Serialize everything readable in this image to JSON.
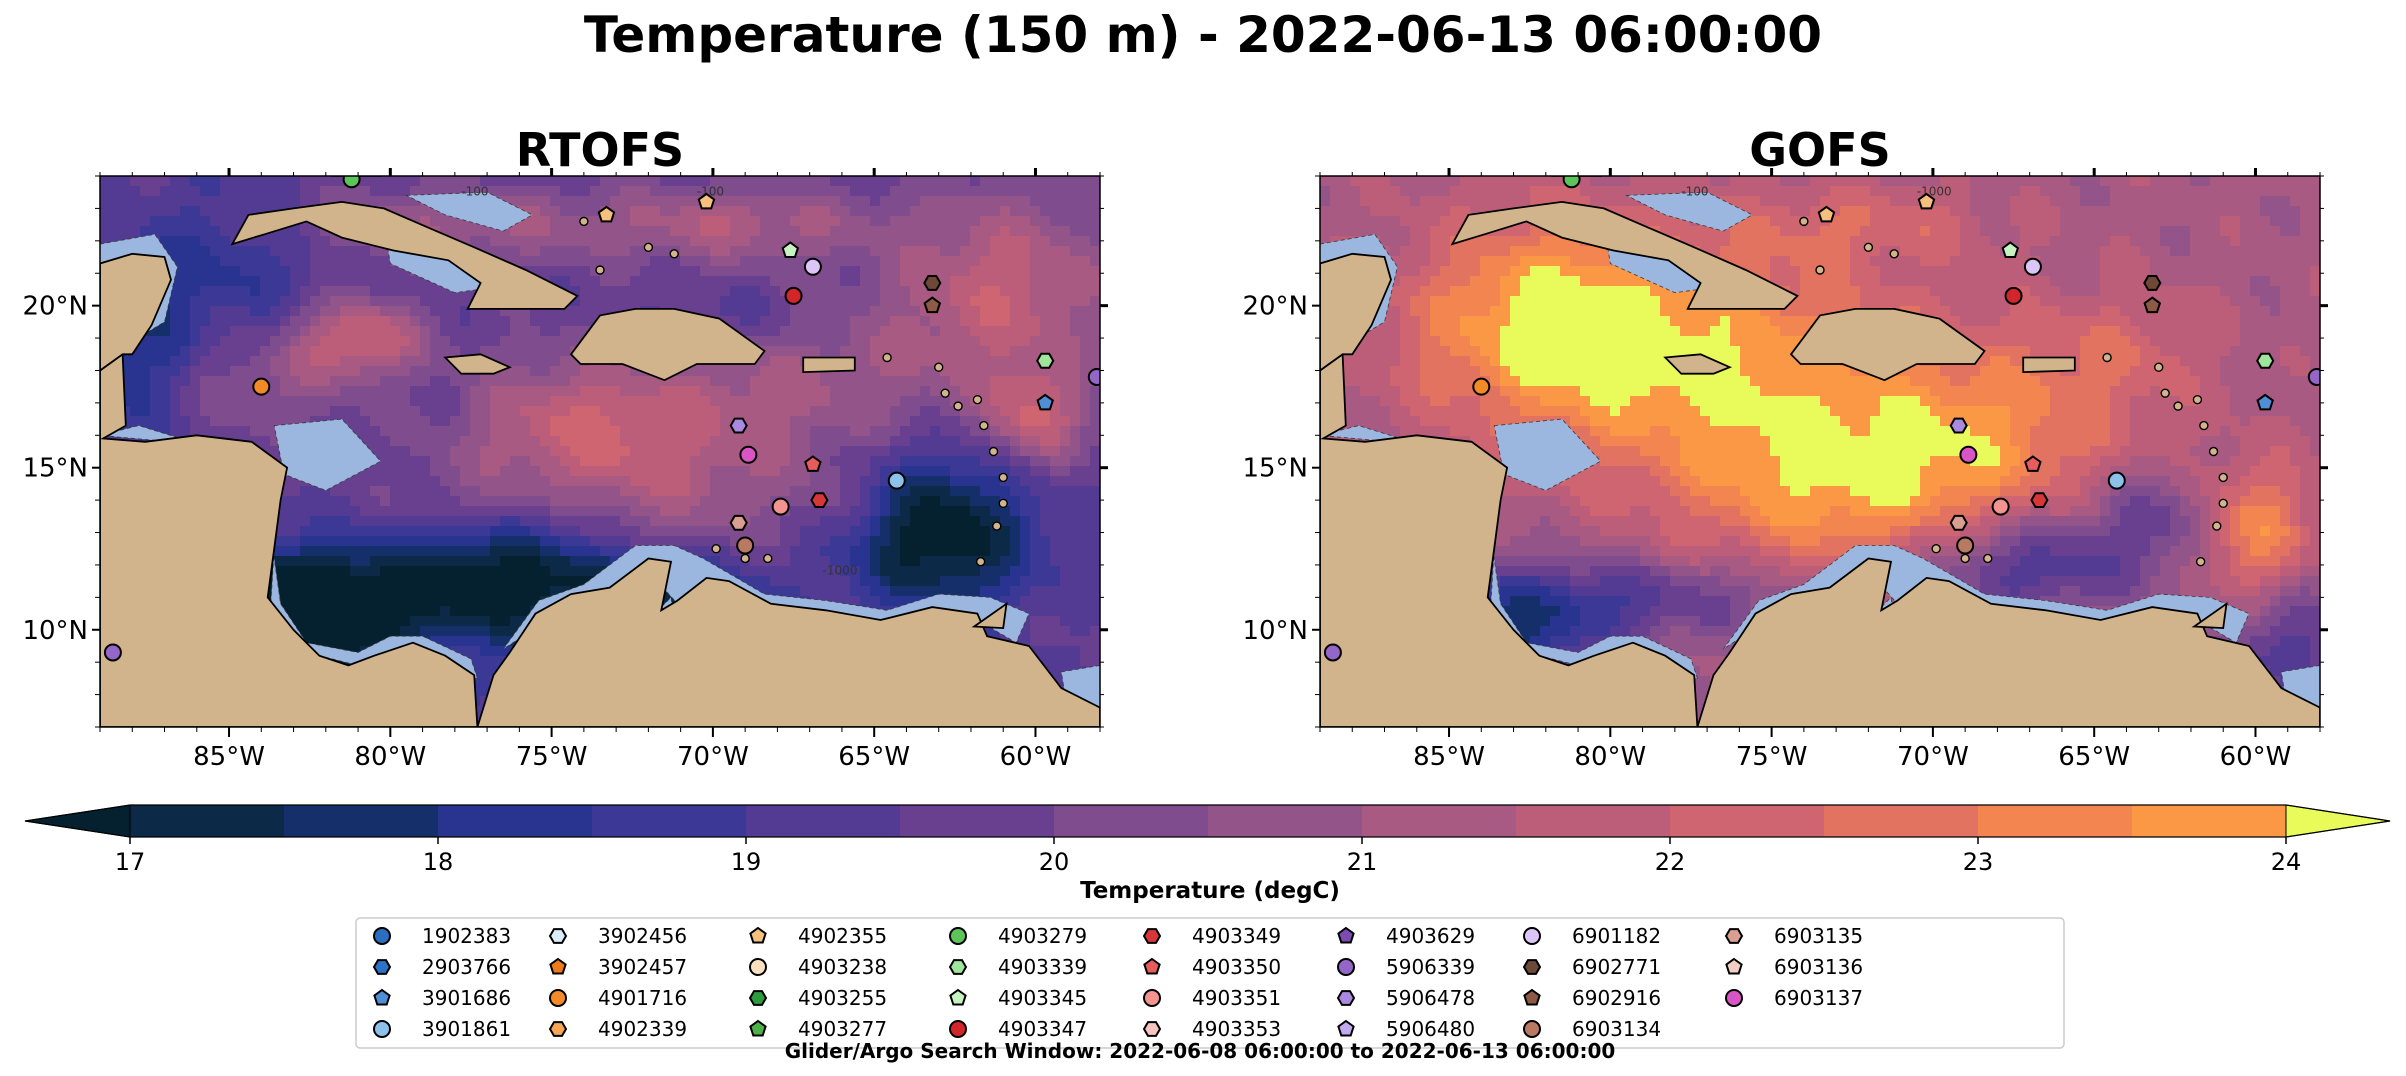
{
  "figure": {
    "title": "Temperature (150 m) - 2022-06-13 06:00:00",
    "footer": "Glider/Argo Search Window: 2022-06-08 06:00:00 to 2022-06-13 06:00:00"
  },
  "chart_data": [
    {
      "type": "heatmap",
      "title": "RTOFS",
      "region": "Caribbean Sea",
      "lon_range": [
        -89,
        -58
      ],
      "lat_range": [
        7,
        24
      ],
      "xticks": [
        "85°W",
        "80°W",
        "75°W",
        "70°W",
        "65°W",
        "60°W"
      ],
      "xtick_values": [
        -85,
        -80,
        -75,
        -70,
        -65,
        -60
      ],
      "yticks": [
        "20°N",
        "15°N",
        "10°N"
      ],
      "ytick_values": [
        20,
        15,
        10
      ],
      "contour_labels": [
        "-100",
        "-100",
        "-1000"
      ],
      "colors": {
        "land": "#d2b48c",
        "shallow": "#9bb7e0"
      }
    },
    {
      "type": "heatmap",
      "title": "GOFS",
      "region": "Caribbean Sea",
      "lon_range": [
        -89,
        -58
      ],
      "lat_range": [
        7,
        24
      ],
      "xticks": [
        "85°W",
        "80°W",
        "75°W",
        "70°W",
        "65°W",
        "60°W"
      ],
      "xtick_values": [
        -85,
        -80,
        -75,
        -70,
        -65,
        -60
      ],
      "yticks": [
        "20°N",
        "15°N",
        "10°N"
      ],
      "ytick_values": [
        20,
        15,
        10
      ],
      "contour_labels": [
        "-100",
        "-1000"
      ],
      "colors": {
        "land": "#d2b48c",
        "shallow": "#9bb7e0"
      }
    }
  ],
  "colorbar": {
    "label": "Temperature (degC)",
    "min": 17,
    "max": 24,
    "step": 0.5,
    "ticks": [
      "17",
      "18",
      "19",
      "20",
      "21",
      "22",
      "23",
      "24"
    ],
    "colors": [
      "#0c2a48",
      "#152f6a",
      "#283490",
      "#3c3896",
      "#533b94",
      "#693f8f",
      "#7f4c8d",
      "#93548a",
      "#a85a82",
      "#bc5e79",
      "#cf6570",
      "#e27361",
      "#f28550",
      "#fa9845",
      "#fcb045",
      "#fac94f",
      "#e8f556"
    ],
    "under_color": "#05202e",
    "over_color": "#e9fb5a"
  },
  "legend": {
    "entries": [
      {
        "id": "1902383",
        "color": "#2b6ebf",
        "marker": "circle"
      },
      {
        "id": "2903766",
        "color": "#2b73c9",
        "marker": "hexagon"
      },
      {
        "id": "3901686",
        "color": "#4f8fd6",
        "marker": "pentagon"
      },
      {
        "id": "3901861",
        "color": "#8dc1ea",
        "marker": "circle"
      },
      {
        "id": "3902456",
        "color": "#d9eef8",
        "marker": "hexagon"
      },
      {
        "id": "3902457",
        "color": "#ee7a19",
        "marker": "pentagon"
      },
      {
        "id": "4901716",
        "color": "#f38a28",
        "marker": "circle"
      },
      {
        "id": "4902339",
        "color": "#f7a657",
        "marker": "hexagon"
      },
      {
        "id": "4902355",
        "color": "#f8c07e",
        "marker": "pentagon"
      },
      {
        "id": "4903238",
        "color": "#fbe0c0",
        "marker": "circle"
      },
      {
        "id": "4903255",
        "color": "#2e9a3e",
        "marker": "hexagon"
      },
      {
        "id": "4903277",
        "color": "#4cb248",
        "marker": "pentagon"
      },
      {
        "id": "4903279",
        "color": "#5cc45a",
        "marker": "circle"
      },
      {
        "id": "4903339",
        "color": "#9fe59b",
        "marker": "hexagon"
      },
      {
        "id": "4903345",
        "color": "#c6f3c1",
        "marker": "pentagon"
      },
      {
        "id": "4903347",
        "color": "#d3262a",
        "marker": "circle"
      },
      {
        "id": "4903349",
        "color": "#d8373a",
        "marker": "hexagon"
      },
      {
        "id": "4903350",
        "color": "#e85c5d",
        "marker": "pentagon"
      },
      {
        "id": "4903351",
        "color": "#f39491",
        "marker": "circle"
      },
      {
        "id": "4903353",
        "color": "#f8c4c2",
        "marker": "hexagon"
      },
      {
        "id": "4903629",
        "color": "#7b4bb2",
        "marker": "pentagon"
      },
      {
        "id": "5906339",
        "color": "#9466c8",
        "marker": "circle"
      },
      {
        "id": "5906478",
        "color": "#a98ae0",
        "marker": "hexagon"
      },
      {
        "id": "5906480",
        "color": "#c3aaf0",
        "marker": "pentagon"
      },
      {
        "id": "6901182",
        "color": "#dcc6f7",
        "marker": "circle"
      },
      {
        "id": "6902771",
        "color": "#6e4937",
        "marker": "hexagon"
      },
      {
        "id": "6902916",
        "color": "#8c5a45",
        "marker": "pentagon"
      },
      {
        "id": "6903134",
        "color": "#b87a62",
        "marker": "circle"
      },
      {
        "id": "6903135",
        "color": "#d9a091",
        "marker": "hexagon"
      },
      {
        "id": "6903136",
        "color": "#f2cfc3",
        "marker": "pentagon"
      },
      {
        "id": "6903137",
        "color": "#d955c5",
        "marker": "circle"
      }
    ]
  },
  "stations": [
    {
      "id": "4903279",
      "lon": -81.2,
      "lat": 23.9,
      "marker": "circle",
      "color": "#5cc45a"
    },
    {
      "id": "4902355",
      "lon": -73.3,
      "lat": 22.8,
      "marker": "pentagon",
      "color": "#f8c07e"
    },
    {
      "id": "4902355",
      "lon": -70.2,
      "lat": 23.2,
      "marker": "pentagon",
      "color": "#f8c07e"
    },
    {
      "id": "4903345",
      "lon": -67.6,
      "lat": 21.7,
      "marker": "pentagon",
      "color": "#c6f3c1"
    },
    {
      "id": "6901182",
      "lon": -66.9,
      "lat": 21.2,
      "marker": "circle",
      "color": "#dcc6f7"
    },
    {
      "id": "4903347",
      "lon": -67.5,
      "lat": 20.3,
      "marker": "circle",
      "color": "#d3262a"
    },
    {
      "id": "6902771",
      "lon": -63.2,
      "lat": 20.7,
      "marker": "hexagon",
      "color": "#6e4937"
    },
    {
      "id": "6902916",
      "lon": -63.2,
      "lat": 20.0,
      "marker": "pentagon",
      "color": "#8c5a45"
    },
    {
      "id": "4903339",
      "lon": -59.7,
      "lat": 18.3,
      "marker": "hexagon",
      "color": "#9fe59b"
    },
    {
      "id": "5906339",
      "lon": -58.1,
      "lat": 17.8,
      "marker": "circle",
      "color": "#9466c8"
    },
    {
      "id": "3901686",
      "lon": -59.7,
      "lat": 17.0,
      "marker": "pentagon",
      "color": "#4f8fd6"
    },
    {
      "id": "4901716",
      "lon": -84.0,
      "lat": 17.5,
      "marker": "circle",
      "color": "#f38a28"
    },
    {
      "id": "5906478",
      "lon": -69.2,
      "lat": 16.3,
      "marker": "hexagon",
      "color": "#a98ae0"
    },
    {
      "id": "6903137",
      "lon": -68.9,
      "lat": 15.4,
      "marker": "circle",
      "color": "#d955c5"
    },
    {
      "id": "4903350",
      "lon": -66.9,
      "lat": 15.1,
      "marker": "pentagon",
      "color": "#e85c5d"
    },
    {
      "id": "3901861",
      "lon": -64.3,
      "lat": 14.6,
      "marker": "circle",
      "color": "#8dc1ea"
    },
    {
      "id": "4903351",
      "lon": -67.9,
      "lat": 13.8,
      "marker": "circle",
      "color": "#f39491"
    },
    {
      "id": "4903349",
      "lon": -66.7,
      "lat": 14.0,
      "marker": "hexagon",
      "color": "#d8373a"
    },
    {
      "id": "6903135",
      "lon": -69.2,
      "lat": 13.3,
      "marker": "hexagon",
      "color": "#d9a091"
    },
    {
      "id": "6903134",
      "lon": -69.0,
      "lat": 12.6,
      "marker": "circle",
      "color": "#b87a62"
    },
    {
      "id": "5906339",
      "lon": -88.6,
      "lat": 9.3,
      "marker": "circle",
      "color": "#9466c8"
    }
  ],
  "rtofs_field": {
    "base": 19.6,
    "blobs": [
      [
        -83,
        11,
        4,
        1.6,
        -3.4
      ],
      [
        -76,
        11.5,
        4,
        2,
        -3.1
      ],
      [
        -63,
        13,
        3,
        2.5,
        -3.2
      ],
      [
        -71,
        11,
        2.5,
        1.2,
        -2.2
      ],
      [
        -84,
        8.5,
        4,
        2,
        -3.5
      ],
      [
        -85,
        21.5,
        3,
        2.5,
        -1.2
      ],
      [
        -88,
        18.5,
        2,
        3,
        -1.5
      ],
      [
        -70,
        19.5,
        3,
        1.2,
        -0.7
      ],
      [
        -72,
        15,
        4,
        3,
        1.8
      ],
      [
        -75,
        16.5,
        3,
        2,
        1.4
      ],
      [
        -67,
        17.5,
        5,
        2.5,
        1.3
      ],
      [
        -61,
        20.5,
        3.5,
        3,
        2.2
      ],
      [
        -81,
        19,
        2,
        1.2,
        2.6
      ],
      [
        -84,
        17.5,
        3,
        1.5,
        1.0
      ],
      [
        -78,
        22.5,
        6,
        1.2,
        1.4
      ],
      [
        -69,
        22.5,
        4,
        1.2,
        1.6
      ],
      [
        -60,
        16.5,
        1.5,
        1.6,
        2.2
      ],
      [
        -66,
        14,
        2,
        1.2,
        0.8
      ],
      [
        -78,
        14,
        2.5,
        1.5,
        0.7
      ]
    ]
  },
  "gofs_field": {
    "base": 21.2,
    "blobs": [
      [
        -78,
        18.5,
        7,
        3.5,
        2.6
      ],
      [
        -73,
        14.5,
        5,
        3,
        2.4
      ],
      [
        -68,
        16,
        4,
        3,
        1.6
      ],
      [
        -82,
        20,
        4,
        3,
        1.8
      ],
      [
        -60,
        13,
        1.8,
        2.2,
        2.2
      ],
      [
        -84,
        10,
        4,
        2,
        -3.6
      ],
      [
        -80,
        11,
        2.5,
        1.2,
        -1.2
      ],
      [
        -67,
        12,
        3.5,
        1.6,
        -2.4
      ],
      [
        -63,
        13.5,
        2,
        1.5,
        -1.4
      ],
      [
        -76,
        11,
        3,
        1.2,
        -1.3
      ],
      [
        -59,
        9.5,
        2,
        2,
        -2.0
      ],
      [
        -64,
        18.5,
        3,
        2,
        0.9
      ],
      [
        -72,
        22.5,
        4,
        1.2,
        1.0
      ]
    ]
  }
}
